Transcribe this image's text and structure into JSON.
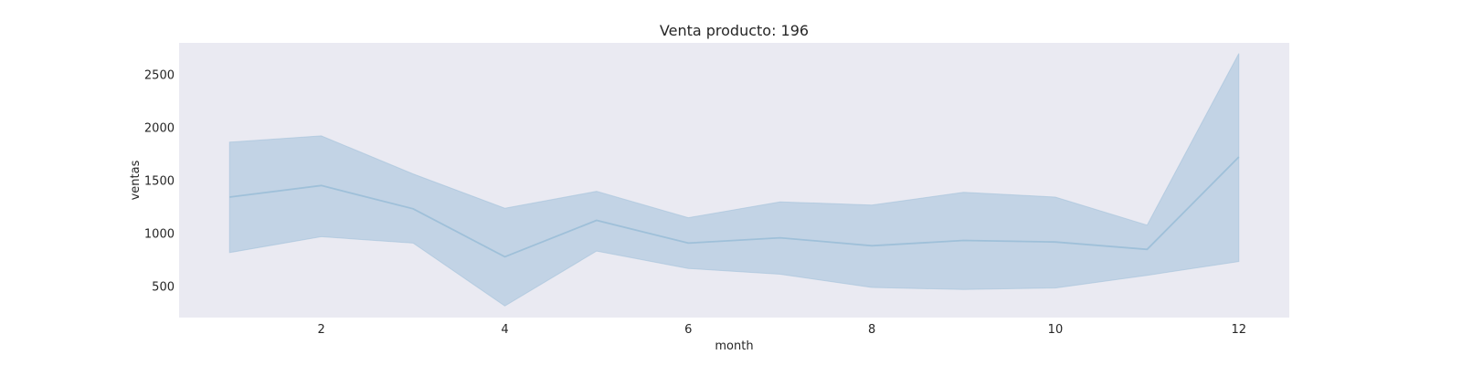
{
  "chart_data": {
    "type": "line",
    "title": "Venta producto: 196",
    "xlabel": "month",
    "ylabel": "ventas",
    "xlim": [
      0.45,
      12.55
    ],
    "ylim": [
      200,
      2800
    ],
    "xticks": [
      2,
      4,
      6,
      8,
      10,
      12
    ],
    "yticks": [
      500,
      1000,
      1500,
      2000,
      2500
    ],
    "grid": false,
    "background": "#eaeaf2",
    "line_color": "#9fc0d9",
    "band_color": "#c2d3e5",
    "series": [
      {
        "x": [
          1,
          2,
          3,
          4,
          5,
          6,
          7,
          8,
          9,
          10,
          11,
          12
        ],
        "mean": [
          1340,
          1450,
          1230,
          775,
          1120,
          905,
          955,
          880,
          930,
          915,
          845,
          1720
        ],
        "lower": [
          815,
          965,
          905,
          310,
          830,
          665,
          610,
          485,
          465,
          480,
          600,
          730
        ],
        "upper": [
          1860,
          1920,
          1560,
          1235,
          1395,
          1145,
          1295,
          1265,
          1385,
          1340,
          1075,
          2700
        ]
      }
    ]
  }
}
